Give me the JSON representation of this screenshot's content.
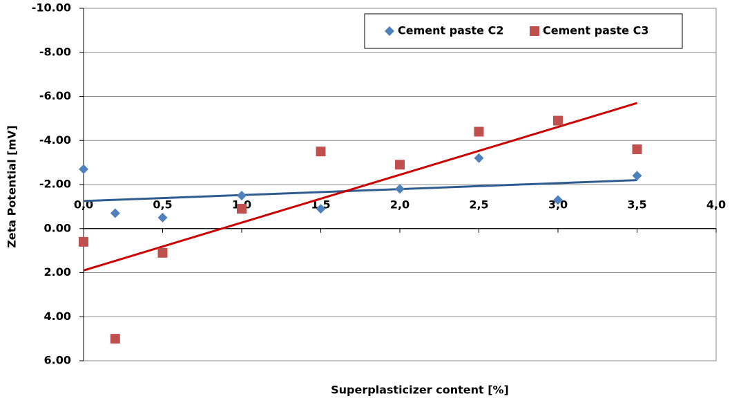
{
  "chart_data": {
    "type": "scatter",
    "x_label": "Superplasticizer content [%]",
    "y_label": "Zeta Potential [mV]",
    "xlim": [
      0,
      4
    ],
    "xticks": [
      {
        "value": 0,
        "label": "0,0"
      },
      {
        "value": 0.5,
        "label": "0,5"
      },
      {
        "value": 1,
        "label": "1,0"
      },
      {
        "value": 1.5,
        "label": "1,5"
      },
      {
        "value": 2,
        "label": "2,0"
      },
      {
        "value": 2.5,
        "label": "2,5"
      },
      {
        "value": 3,
        "label": "3,0"
      },
      {
        "value": 3.5,
        "label": "3,5"
      },
      {
        "value": 4,
        "label": "4,0"
      }
    ],
    "ylim": [
      -10,
      6
    ],
    "y_reversed": true,
    "yticks": [
      {
        "value": -10,
        "label": "-10.00"
      },
      {
        "value": -8,
        "label": "-8.00"
      },
      {
        "value": -6,
        "label": "-6.00"
      },
      {
        "value": -4,
        "label": "-4.00"
      },
      {
        "value": -2,
        "label": "-2.00"
      },
      {
        "value": 0,
        "label": "0.00"
      },
      {
        "value": 2,
        "label": "2.00"
      },
      {
        "value": 4,
        "label": "4.00"
      },
      {
        "value": 6,
        "label": "6.00"
      }
    ],
    "grid": true,
    "legend": "top-right",
    "series": [
      {
        "name": "Cement paste C2",
        "color": "#4f81bd",
        "marker": "diamond",
        "x": [
          0,
          0.2,
          0.5,
          1,
          1.5,
          2,
          2.5,
          3,
          3.5
        ],
        "values": [
          -2.7,
          -0.7,
          -0.5,
          -1.5,
          -0.9,
          -1.8,
          -3.2,
          -1.3,
          -2.4
        ],
        "trendline": {
          "color": "#2e5c8f",
          "x": [
            0,
            3.5
          ],
          "values": [
            -1.25,
            -2.2
          ]
        }
      },
      {
        "name": "Cement paste C3",
        "color": "#c0504d",
        "marker": "square",
        "x": [
          0,
          0.2,
          0.5,
          1,
          1.5,
          2,
          2.5,
          3,
          3.5
        ],
        "values": [
          0.6,
          5.0,
          1.1,
          -0.9,
          -3.5,
          -2.9,
          -4.4,
          -4.9,
          -3.6
        ],
        "trendline": {
          "color": "#cc0000",
          "x": [
            0,
            3.5
          ],
          "values": [
            1.9,
            -5.7
          ]
        }
      }
    ]
  }
}
